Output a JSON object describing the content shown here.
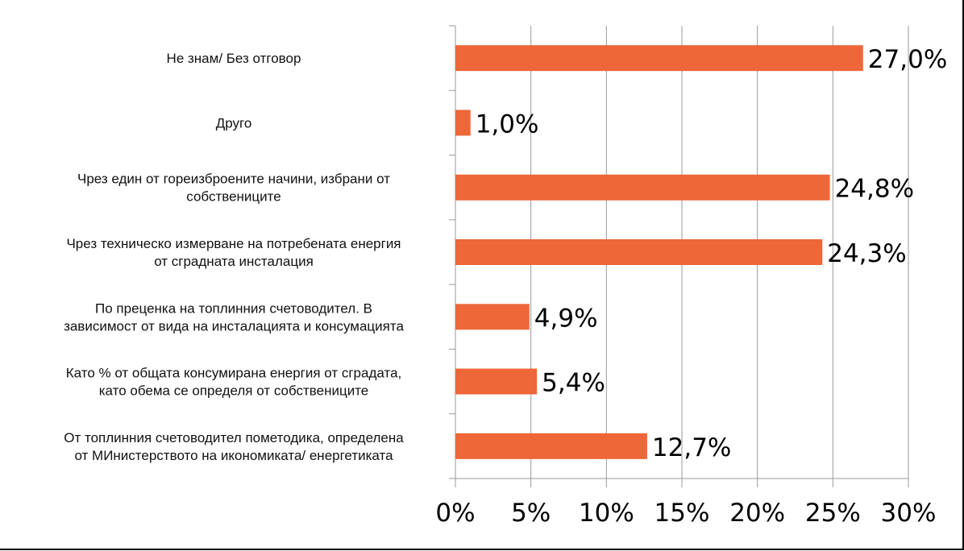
{
  "chart_data": {
    "type": "bar",
    "orientation": "horizontal",
    "title": "",
    "xlabel": "",
    "ylabel": "",
    "categories": [
      [
        "Не знам/ Без отговор"
      ],
      [
        "Друго"
      ],
      [
        "Чрез един от гореизброените начини, избрани от",
        "собствениците"
      ],
      [
        "Чрез техническо измерване на потребената енергия",
        "от сградната инсталация"
      ],
      [
        "По преценка на топлинния счетоводител. В",
        "зависимост от вида на инсталацията и консумацията"
      ],
      [
        "Като % от общата консумирана енергия от сградата,",
        "като обема се определя от собствениците"
      ],
      [
        "От топлинния счетоводител пометодика, определена",
        "от МИнистерството на икономиката/ енергетиката"
      ]
    ],
    "values": [
      27.0,
      1.0,
      24.8,
      24.3,
      4.9,
      5.4,
      12.7
    ],
    "data_labels": [
      "27,0%",
      "1,0%",
      "24,8%",
      "24,3%",
      "4,9%",
      "5,4%",
      "12,7%"
    ],
    "xlim": [
      0,
      30
    ],
    "xticks": [
      0,
      5,
      10,
      15,
      20,
      25,
      30
    ],
    "xtick_labels": [
      "0%",
      "5%",
      "10%",
      "15%",
      "20%",
      "25%",
      "30%"
    ],
    "grid": true,
    "legend": "none",
    "bar_color": "#ED6738",
    "grid_color": "#9a9a9a"
  }
}
